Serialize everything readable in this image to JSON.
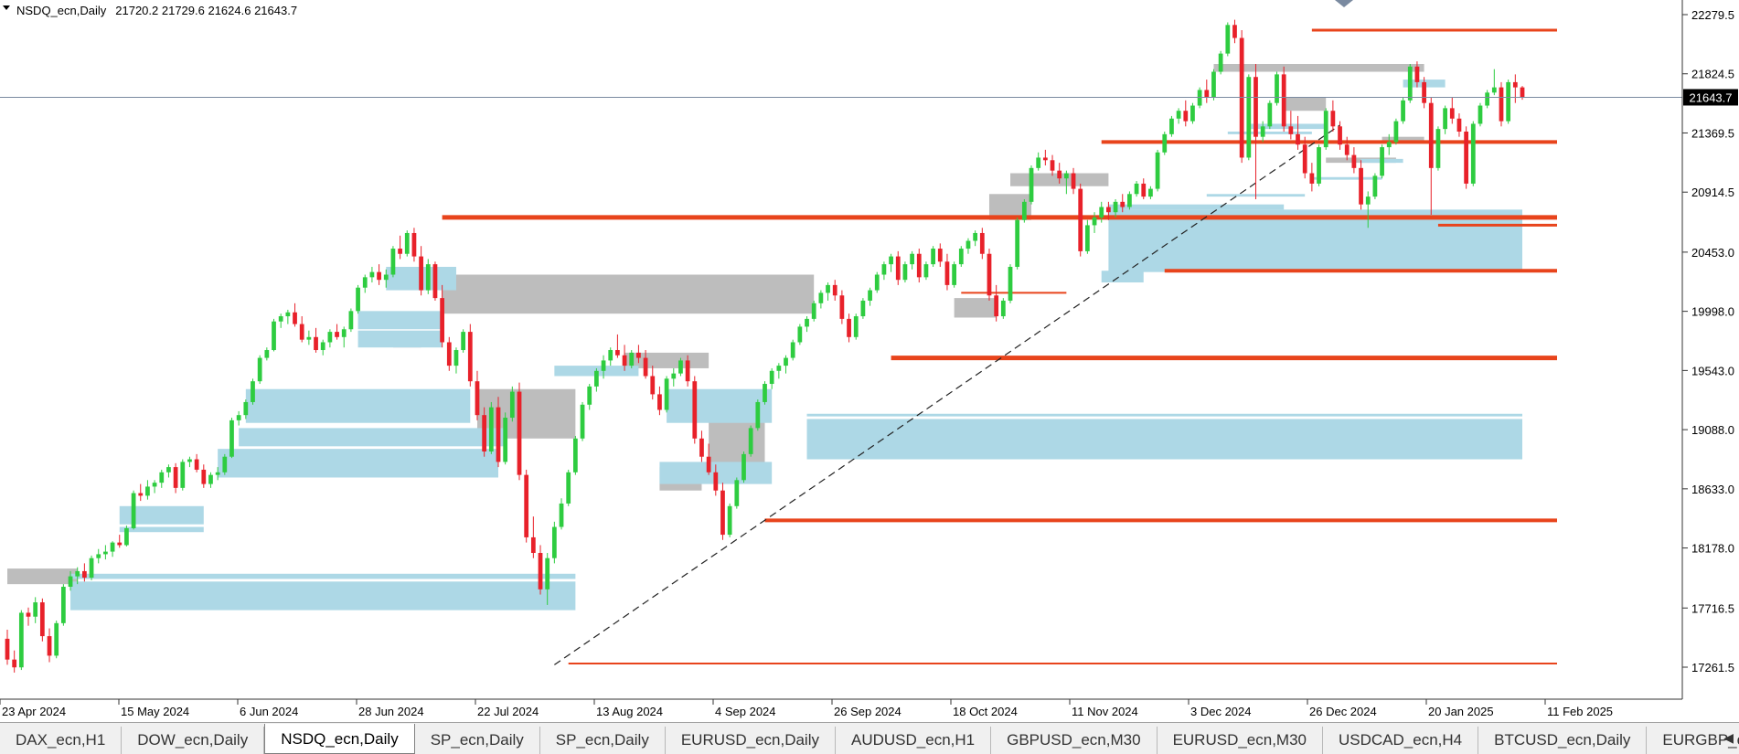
{
  "window": {
    "symbol": "NSDQ_ecn,Daily",
    "ohlc": "21720.2 21729.6 21624.6 21643.7"
  },
  "chart_data": {
    "type": "candlestick",
    "symbol": "NSDQ_ecn",
    "timeframe": "Daily",
    "current_price": 21643.7,
    "current_price_label": "21643.7",
    "ylim": [
      17050,
      22350
    ],
    "price_ticks": [
      "22279.5",
      "21824.5",
      "21369.5",
      "20914.5",
      "20453.0",
      "19998.0",
      "19543.0",
      "19088.0",
      "18633.0",
      "18178.0",
      "17716.5",
      "17261.5"
    ],
    "date_ticks": [
      "23 Apr 2024",
      "15 May 2024",
      "6 Jun 2024",
      "28 Jun 2024",
      "22 Jul 2024",
      "13 Aug 2024",
      "4 Sep 2024",
      "26 Sep 2024",
      "18 Oct 2024",
      "11 Nov 2024",
      "3 Dec 2024",
      "26 Dec 2024",
      "20 Jan 2025",
      "11 Feb 2025"
    ],
    "up_color": "#2ecc40",
    "down_color": "#e8212a",
    "grid": false,
    "candles_ohlc": [
      [
        17480,
        17550,
        17280,
        17320
      ],
      [
        17320,
        17390,
        17220,
        17260
      ],
      [
        17260,
        17700,
        17240,
        17680
      ],
      [
        17680,
        17720,
        17580,
        17650
      ],
      [
        17650,
        17800,
        17600,
        17760
      ],
      [
        17760,
        17790,
        17460,
        17500
      ],
      [
        17500,
        17560,
        17300,
        17350
      ],
      [
        17350,
        17620,
        17330,
        17600
      ],
      [
        17600,
        17900,
        17580,
        17880
      ],
      [
        17880,
        18000,
        17850,
        17960
      ],
      [
        17960,
        18030,
        17900,
        18000
      ],
      [
        18000,
        18060,
        17920,
        17950
      ],
      [
        17950,
        18120,
        17930,
        18100
      ],
      [
        18100,
        18170,
        18060,
        18130
      ],
      [
        18130,
        18200,
        18090,
        18150
      ],
      [
        18150,
        18230,
        18110,
        18220
      ],
      [
        18220,
        18280,
        18180,
        18200
      ],
      [
        18200,
        18350,
        18190,
        18330
      ],
      [
        18330,
        18620,
        18320,
        18600
      ],
      [
        18600,
        18670,
        18540,
        18580
      ],
      [
        18580,
        18700,
        18550,
        18650
      ],
      [
        18650,
        18700,
        18600,
        18680
      ],
      [
        18680,
        18780,
        18640,
        18760
      ],
      [
        18760,
        18820,
        18720,
        18800
      ],
      [
        18800,
        18830,
        18600,
        18640
      ],
      [
        18640,
        18860,
        18620,
        18840
      ],
      [
        18840,
        18880,
        18800,
        18860
      ],
      [
        18860,
        18900,
        18760,
        18780
      ],
      [
        18780,
        18820,
        18640,
        18670
      ],
      [
        18670,
        18760,
        18640,
        18740
      ],
      [
        18740,
        18800,
        18700,
        18760
      ],
      [
        18760,
        18900,
        18740,
        18880
      ],
      [
        18880,
        19180,
        18870,
        19160
      ],
      [
        19160,
        19230,
        19120,
        19200
      ],
      [
        19200,
        19320,
        19170,
        19300
      ],
      [
        19300,
        19480,
        19280,
        19460
      ],
      [
        19460,
        19660,
        19440,
        19640
      ],
      [
        19640,
        19720,
        19620,
        19700
      ],
      [
        19700,
        19940,
        19690,
        19920
      ],
      [
        19920,
        19980,
        19870,
        19960
      ],
      [
        19960,
        20010,
        19900,
        19990
      ],
      [
        19990,
        20060,
        19880,
        19900
      ],
      [
        19900,
        19960,
        19760,
        19780
      ],
      [
        19780,
        19850,
        19740,
        19800
      ],
      [
        19800,
        19870,
        19680,
        19700
      ],
      [
        19700,
        19780,
        19660,
        19760
      ],
      [
        19760,
        19860,
        19720,
        19840
      ],
      [
        19840,
        19900,
        19780,
        19800
      ],
      [
        19800,
        19880,
        19720,
        19860
      ],
      [
        19860,
        20020,
        19840,
        20000
      ],
      [
        20000,
        20200,
        19980,
        20180
      ],
      [
        20180,
        20280,
        20140,
        20260
      ],
      [
        20260,
        20340,
        20220,
        20300
      ],
      [
        20300,
        20360,
        20200,
        20240
      ],
      [
        20240,
        20320,
        20180,
        20280
      ],
      [
        20280,
        20500,
        20260,
        20480
      ],
      [
        20480,
        20580,
        20400,
        20440
      ],
      [
        20440,
        20620,
        20420,
        20600
      ],
      [
        20600,
        20640,
        20380,
        20420
      ],
      [
        20420,
        20500,
        20120,
        20160
      ],
      [
        20160,
        20400,
        20130,
        20360
      ],
      [
        20360,
        20380,
        20080,
        20100
      ],
      [
        20100,
        20200,
        19720,
        19760
      ],
      [
        19760,
        19800,
        19540,
        19580
      ],
      [
        19580,
        19720,
        19520,
        19700
      ],
      [
        19700,
        19860,
        19680,
        19840
      ],
      [
        19840,
        19900,
        19420,
        19460
      ],
      [
        19460,
        19540,
        19160,
        19200
      ],
      [
        19200,
        19260,
        18880,
        18920
      ],
      [
        18920,
        19300,
        18900,
        19260
      ],
      [
        19260,
        19340,
        18800,
        18840
      ],
      [
        18840,
        19220,
        18820,
        19180
      ],
      [
        19180,
        19420,
        19150,
        19380
      ],
      [
        19380,
        19450,
        18700,
        18740
      ],
      [
        18740,
        18780,
        18220,
        18260
      ],
      [
        18260,
        18420,
        18100,
        18140
      ],
      [
        18140,
        18200,
        17820,
        17860
      ],
      [
        17860,
        18140,
        17740,
        18100
      ],
      [
        18100,
        18380,
        18060,
        18340
      ],
      [
        18340,
        18560,
        18320,
        18520
      ],
      [
        18520,
        18780,
        18500,
        18760
      ],
      [
        18760,
        19040,
        18740,
        19020
      ],
      [
        19020,
        19300,
        19000,
        19280
      ],
      [
        19280,
        19440,
        19240,
        19420
      ],
      [
        19420,
        19560,
        19380,
        19540
      ],
      [
        19540,
        19660,
        19480,
        19620
      ],
      [
        19620,
        19720,
        19580,
        19700
      ],
      [
        19700,
        19820,
        19640,
        19660
      ],
      [
        19660,
        19740,
        19540,
        19580
      ],
      [
        19580,
        19700,
        19560,
        19680
      ],
      [
        19680,
        19740,
        19600,
        19640
      ],
      [
        19640,
        19700,
        19480,
        19500
      ],
      [
        19500,
        19580,
        19320,
        19360
      ],
      [
        19360,
        19420,
        19200,
        19240
      ],
      [
        19240,
        19500,
        19220,
        19480
      ],
      [
        19480,
        19560,
        19420,
        19520
      ],
      [
        19520,
        19640,
        19500,
        19620
      ],
      [
        19620,
        19660,
        19420,
        19460
      ],
      [
        19460,
        19500,
        18980,
        19020
      ],
      [
        19020,
        19080,
        18840,
        18880
      ],
      [
        18880,
        18980,
        18740,
        18760
      ],
      [
        18760,
        18820,
        18580,
        18620
      ],
      [
        18620,
        18680,
        18240,
        18280
      ],
      [
        18280,
        18520,
        18260,
        18500
      ],
      [
        18500,
        18720,
        18480,
        18700
      ],
      [
        18700,
        18920,
        18680,
        18900
      ],
      [
        18900,
        19120,
        18880,
        19100
      ],
      [
        19100,
        19320,
        19080,
        19300
      ],
      [
        19300,
        19460,
        19280,
        19440
      ],
      [
        19440,
        19560,
        19400,
        19540
      ],
      [
        19540,
        19600,
        19480,
        19580
      ],
      [
        19580,
        19660,
        19520,
        19640
      ],
      [
        19640,
        19780,
        19620,
        19760
      ],
      [
        19760,
        19900,
        19740,
        19880
      ],
      [
        19880,
        19960,
        19840,
        19940
      ],
      [
        19940,
        20080,
        19920,
        20060
      ],
      [
        20060,
        20160,
        20020,
        20140
      ],
      [
        20140,
        20220,
        20080,
        20200
      ],
      [
        20200,
        20240,
        20080,
        20120
      ],
      [
        20120,
        20160,
        19900,
        19940
      ],
      [
        19940,
        19980,
        19760,
        19800
      ],
      [
        19800,
        19980,
        19780,
        19960
      ],
      [
        19960,
        20100,
        19940,
        20080
      ],
      [
        20080,
        20180,
        20040,
        20160
      ],
      [
        20160,
        20300,
        20140,
        20280
      ],
      [
        20280,
        20380,
        20240,
        20360
      ],
      [
        20360,
        20440,
        20300,
        20420
      ],
      [
        20420,
        20460,
        20200,
        20240
      ],
      [
        20240,
        20380,
        20220,
        20360
      ],
      [
        20360,
        20460,
        20320,
        20440
      ],
      [
        20440,
        20480,
        20220,
        20260
      ],
      [
        20260,
        20380,
        20240,
        20360
      ],
      [
        20360,
        20500,
        20340,
        20480
      ],
      [
        20480,
        20520,
        20340,
        20380
      ],
      [
        20380,
        20440,
        20160,
        20200
      ],
      [
        20200,
        20380,
        20180,
        20360
      ],
      [
        20360,
        20500,
        20340,
        20480
      ],
      [
        20480,
        20560,
        20440,
        20540
      ],
      [
        20540,
        20620,
        20500,
        20600
      ],
      [
        20600,
        20640,
        20400,
        20440
      ],
      [
        20440,
        20480,
        20080,
        20120
      ],
      [
        20120,
        20200,
        19920,
        19960
      ],
      [
        19960,
        20100,
        19940,
        20080
      ],
      [
        20080,
        20360,
        20060,
        20340
      ],
      [
        20340,
        20720,
        20320,
        20700
      ],
      [
        20700,
        20860,
        20680,
        20840
      ],
      [
        20840,
        21120,
        20820,
        21100
      ],
      [
        21100,
        21220,
        21080,
        21180
      ],
      [
        21180,
        21240,
        21120,
        21160
      ],
      [
        21160,
        21200,
        21040,
        21080
      ],
      [
        21080,
        21140,
        20980,
        21020
      ],
      [
        21020,
        21080,
        20900,
        21060
      ],
      [
        21060,
        21100,
        20900,
        20940
      ],
      [
        20940,
        20980,
        20420,
        20460
      ],
      [
        20460,
        20700,
        20440,
        20660
      ],
      [
        20660,
        20760,
        20600,
        20720
      ],
      [
        20720,
        20840,
        20680,
        20800
      ],
      [
        20800,
        20840,
        20700,
        20760
      ],
      [
        20760,
        20860,
        20720,
        20840
      ],
      [
        20840,
        20900,
        20760,
        20800
      ],
      [
        20800,
        20920,
        20780,
        20900
      ],
      [
        20900,
        21000,
        20880,
        20980
      ],
      [
        20980,
        21020,
        20860,
        20880
      ],
      [
        20880,
        20960,
        20860,
        20940
      ],
      [
        20940,
        21240,
        20920,
        21220
      ],
      [
        21220,
        21380,
        21200,
        21360
      ],
      [
        21360,
        21500,
        21340,
        21480
      ],
      [
        21480,
        21560,
        21440,
        21540
      ],
      [
        21540,
        21620,
        21420,
        21460
      ],
      [
        21460,
        21600,
        21440,
        21580
      ],
      [
        21580,
        21720,
        21560,
        21700
      ],
      [
        21700,
        21780,
        21600,
        21640
      ],
      [
        21640,
        21860,
        21620,
        21840
      ],
      [
        21840,
        22000,
        21820,
        21980
      ],
      [
        21980,
        22220,
        21960,
        22200
      ],
      [
        22200,
        22240,
        22060,
        22100
      ],
      [
        22100,
        22160,
        21140,
        21180
      ],
      [
        21180,
        21820,
        21160,
        21800
      ],
      [
        21800,
        21900,
        20860,
        21340
      ],
      [
        21340,
        21460,
        21300,
        21420
      ],
      [
        21420,
        21620,
        21400,
        21600
      ],
      [
        21600,
        21840,
        21580,
        21820
      ],
      [
        21820,
        21880,
        21380,
        21420
      ],
      [
        21420,
        21540,
        21320,
        21360
      ],
      [
        21360,
        21500,
        21240,
        21280
      ],
      [
        21280,
        21340,
        21020,
        21060
      ],
      [
        21060,
        21140,
        20920,
        20980
      ],
      [
        20980,
        21280,
        20960,
        21260
      ],
      [
        21260,
        21560,
        21240,
        21540
      ],
      [
        21540,
        21620,
        21380,
        21420
      ],
      [
        21420,
        21460,
        21240,
        21280
      ],
      [
        21280,
        21340,
        21160,
        21200
      ],
      [
        21200,
        21260,
        21060,
        21100
      ],
      [
        21100,
        21160,
        20780,
        20820
      ],
      [
        20820,
        20920,
        20640,
        20880
      ],
      [
        20880,
        21060,
        20860,
        21040
      ],
      [
        21040,
        21280,
        21020,
        21260
      ],
      [
        21260,
        21360,
        21200,
        21300
      ],
      [
        21300,
        21480,
        21280,
        21460
      ],
      [
        21460,
        21640,
        21440,
        21620
      ],
      [
        21620,
        21900,
        21600,
        21880
      ],
      [
        21880,
        21920,
        21720,
        21760
      ],
      [
        21760,
        21800,
        21560,
        21600
      ],
      [
        21600,
        21640,
        20740,
        21100
      ],
      [
        21100,
        21420,
        21080,
        21400
      ],
      [
        21400,
        21580,
        21360,
        21560
      ],
      [
        21560,
        21640,
        21440,
        21480
      ],
      [
        21480,
        21520,
        21340,
        21380
      ],
      [
        21380,
        21420,
        20940,
        20980
      ],
      [
        20980,
        21460,
        20960,
        21440
      ],
      [
        21440,
        21600,
        21420,
        21580
      ],
      [
        21580,
        21700,
        21560,
        21680
      ],
      [
        21680,
        21860,
        21660,
        21720
      ],
      [
        21720,
        21760,
        21420,
        21460
      ],
      [
        21460,
        21780,
        21440,
        21760
      ],
      [
        21760,
        21820,
        21600,
        21720
      ],
      [
        21720,
        21730,
        21625,
        21644
      ]
    ],
    "zones_gray": [
      {
        "p1": 17900,
        "p2": 18020
      },
      {
        "p1": 18740,
        "p2": 18760
      },
      {
        "p1": 19720,
        "p2": 19800
      },
      {
        "p1": 19980,
        "p2": 20280
      },
      {
        "p1": 19020,
        "p2": 19400
      },
      {
        "p1": 19560,
        "p2": 19680
      },
      {
        "p1": 18620,
        "p2": 18800
      },
      {
        "p1": 18820,
        "p2": 19200
      },
      {
        "p1": 19950,
        "p2": 20100
      },
      {
        "p1": 20700,
        "p2": 20900
      },
      {
        "p1": 20960,
        "p2": 21060
      },
      {
        "p1": 21840,
        "p2": 21900
      },
      {
        "p1": 21540,
        "p2": 21640
      },
      {
        "p1": 21300,
        "p2": 21340
      },
      {
        "p1": 21140,
        "p2": 21180
      }
    ],
    "zones_blue": [
      {
        "p1": 17700,
        "p2": 17920
      },
      {
        "p1": 17940,
        "p2": 17980
      },
      {
        "p1": 18300,
        "p2": 18340
      },
      {
        "p1": 18360,
        "p2": 18500
      },
      {
        "p1": 18720,
        "p2": 18940
      },
      {
        "p1": 18960,
        "p2": 19100
      },
      {
        "p1": 19140,
        "p2": 19400
      },
      {
        "p1": 19720,
        "p2": 19850
      },
      {
        "p1": 19860,
        "p2": 20000
      },
      {
        "p1": 20160,
        "p2": 20340
      },
      {
        "p1": 19140,
        "p2": 19400
      },
      {
        "p1": 18670,
        "p2": 18840
      },
      {
        "p1": 19500,
        "p2": 19580
      },
      {
        "p1": 18860,
        "p2": 19170
      },
      {
        "p1": 19190,
        "p2": 19210
      },
      {
        "p1": 20220,
        "p2": 20310
      },
      {
        "p1": 20300,
        "p2": 20780
      },
      {
        "p1": 20780,
        "p2": 20820
      },
      {
        "p1": 20880,
        "p2": 20900
      },
      {
        "p1": 21400,
        "p2": 21440
      },
      {
        "p1": 21360,
        "p2": 21380
      },
      {
        "p1": 21140,
        "p2": 21170
      },
      {
        "p1": 21010,
        "p2": 21030
      },
      {
        "p1": 21720,
        "p2": 21780
      }
    ],
    "levels_orange": [
      22160,
      20720,
      21300,
      20660,
      20310,
      19640,
      18390,
      20140,
      17290
    ]
  }
}
